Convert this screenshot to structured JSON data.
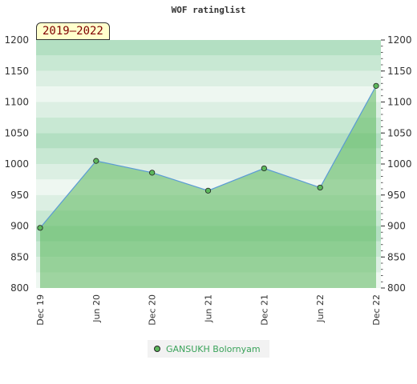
{
  "chart_data": {
    "type": "area",
    "title": "WOF ratinglist",
    "period_label": "2019–2022",
    "xlabel": "",
    "ylabel": "",
    "ylim": [
      800,
      1200
    ],
    "yticks": [
      800,
      850,
      900,
      950,
      1000,
      1050,
      1100,
      1150,
      1200
    ],
    "x_labels": [
      "Dec 19",
      "Jun 20",
      "Dec 20",
      "Jun 21",
      "Dec 21",
      "Jun 22",
      "Dec 22"
    ],
    "series": [
      {
        "name": "GANSUKH Bolornyam",
        "color": "#5cb85c",
        "values": [
          897,
          1005,
          986,
          957,
          993,
          962,
          1126
        ]
      }
    ],
    "grid": true,
    "legend_position": "bottom"
  }
}
